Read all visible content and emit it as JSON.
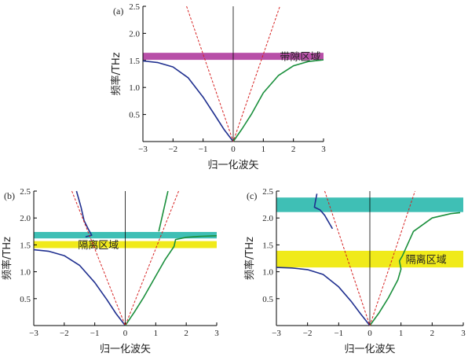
{
  "chart_data": [
    {
      "panel_label": "(a)",
      "type": "line",
      "xlabel": "归一化波矢",
      "ylabel": "频率/THz",
      "xlim": [
        -3,
        3
      ],
      "ylim": [
        0,
        2.5
      ],
      "xticks": [
        "−3",
        "−2",
        "−1",
        "0",
        "1",
        "2",
        "3"
      ],
      "yticks": [
        "0.5",
        "1.0",
        "1.5",
        "2.0",
        "2.5"
      ],
      "bands": [
        {
          "label": "带隙区域",
          "y_range": [
            1.51,
            1.64
          ],
          "color": "#b84fa8"
        }
      ],
      "series": [
        {
          "color": "#1f2f8f",
          "style": "solid",
          "points": [
            [
              -3,
              1.49
            ],
            [
              -2.5,
              1.46
            ],
            [
              -2.0,
              1.38
            ],
            [
              -1.5,
              1.18
            ],
            [
              -1.0,
              0.82
            ],
            [
              -0.6,
              0.48
            ],
            [
              -0.3,
              0.22
            ],
            [
              0,
              0
            ]
          ]
        },
        {
          "color": "#1a8f3c",
          "style": "solid",
          "points": [
            [
              0,
              0
            ],
            [
              0.3,
              0.24
            ],
            [
              0.6,
              0.5
            ],
            [
              1.0,
              0.9
            ],
            [
              1.5,
              1.22
            ],
            [
              2.0,
              1.4
            ],
            [
              2.5,
              1.48
            ],
            [
              3.0,
              1.51
            ]
          ]
        },
        {
          "color": "#d62020",
          "style": "dashed",
          "points": [
            [
              -1.55,
              2.5
            ],
            [
              0,
              0
            ],
            [
              1.55,
              2.5
            ]
          ]
        }
      ]
    },
    {
      "panel_label": "(b)",
      "type": "line",
      "xlabel": "归一化波矢",
      "ylabel": "频率/THz",
      "xlim": [
        -3,
        3
      ],
      "ylim": [
        0,
        2.5
      ],
      "xticks": [
        "−3",
        "−2",
        "−1",
        "0",
        "1",
        "2",
        "3"
      ],
      "yticks": [
        "0.5",
        "1.0",
        "1.5",
        "2.0",
        "2.5"
      ],
      "bands": [
        {
          "label": "",
          "y_range": [
            1.62,
            1.74
          ],
          "color": "#3fbfb5"
        },
        {
          "label": "隔离区域",
          "y_range": [
            1.44,
            1.57
          ],
          "color": "#f0ea1a"
        }
      ],
      "series": [
        {
          "color": "#1f2f8f",
          "style": "solid",
          "points": [
            [
              -1.6,
              2.5
            ],
            [
              -1.45,
              2.2
            ],
            [
              -1.35,
              1.95
            ],
            [
              -1.2,
              1.78
            ],
            [
              -1.1,
              1.68
            ],
            [
              -1.3,
              1.65
            ]
          ]
        },
        {
          "color": "#1f2f8f",
          "style": "solid",
          "points": [
            [
              -3,
              1.41
            ],
            [
              -2.5,
              1.38
            ],
            [
              -2.0,
              1.3
            ],
            [
              -1.5,
              1.12
            ],
            [
              -1.0,
              0.8
            ],
            [
              -0.6,
              0.48
            ],
            [
              -0.3,
              0.22
            ],
            [
              0,
              0
            ]
          ]
        },
        {
          "color": "#1a8f3c",
          "style": "solid",
          "points": [
            [
              0,
              0
            ],
            [
              0.3,
              0.25
            ],
            [
              0.6,
              0.52
            ],
            [
              1.0,
              0.92
            ],
            [
              1.3,
              1.22
            ],
            [
              1.6,
              1.47
            ],
            [
              1.65,
              1.6
            ],
            [
              2.0,
              1.64
            ],
            [
              2.5,
              1.66
            ],
            [
              3.0,
              1.67
            ]
          ]
        },
        {
          "color": "#1a8f3c",
          "style": "solid",
          "points": [
            [
              1.4,
              2.5
            ],
            [
              1.2,
              2.0
            ],
            [
              1.1,
              1.75
            ]
          ]
        },
        {
          "color": "#d62020",
          "style": "dashed",
          "points": [
            [
              -1.75,
              2.5
            ],
            [
              0,
              0
            ],
            [
              1.75,
              2.5
            ]
          ]
        }
      ]
    },
    {
      "panel_label": "(c)",
      "type": "line",
      "xlabel": "归一化波矢",
      "ylabel": "频率/THz",
      "xlim": [
        -3,
        3
      ],
      "ylim": [
        0,
        2.5
      ],
      "xticks": [
        "−3",
        "−2",
        "−1",
        "0",
        "1",
        "2",
        "3"
      ],
      "yticks": [
        "0.5",
        "1.0",
        "1.5",
        "2.0",
        "2.5"
      ],
      "bands": [
        {
          "label": "",
          "y_range": [
            2.11,
            2.38
          ],
          "color": "#3fbfb5"
        },
        {
          "label": "隔离区域",
          "y_range": [
            1.08,
            1.39
          ],
          "color": "#f0ea1a"
        }
      ],
      "series": [
        {
          "color": "#1f2f8f",
          "style": "solid",
          "points": [
            [
              -1.7,
              2.45
            ],
            [
              -1.75,
              2.3
            ],
            [
              -1.78,
              2.2
            ],
            [
              -1.6,
              2.15
            ],
            [
              -1.45,
              2.05
            ],
            [
              -1.2,
              1.8
            ]
          ]
        },
        {
          "color": "#1f2f8f",
          "style": "solid",
          "points": [
            [
              -3,
              1.08
            ],
            [
              -2.5,
              1.07
            ],
            [
              -2.0,
              1.04
            ],
            [
              -1.5,
              0.95
            ],
            [
              -1.0,
              0.72
            ],
            [
              -0.6,
              0.45
            ],
            [
              -0.3,
              0.22
            ],
            [
              0,
              0
            ]
          ]
        },
        {
          "color": "#1a8f3c",
          "style": "solid",
          "points": [
            [
              0,
              0
            ],
            [
              0.3,
              0.24
            ],
            [
              0.6,
              0.52
            ],
            [
              0.9,
              0.85
            ],
            [
              1.0,
              1.05
            ],
            [
              0.95,
              1.2
            ],
            [
              1.05,
              1.3
            ],
            [
              1.4,
              1.75
            ],
            [
              2.0,
              2.0
            ],
            [
              2.6,
              2.08
            ],
            [
              2.9,
              2.1
            ]
          ]
        },
        {
          "color": "#d62020",
          "style": "dashed",
          "points": [
            [
              -1.45,
              2.5
            ],
            [
              0,
              0
            ],
            [
              1.45,
              2.5
            ]
          ]
        }
      ]
    }
  ]
}
